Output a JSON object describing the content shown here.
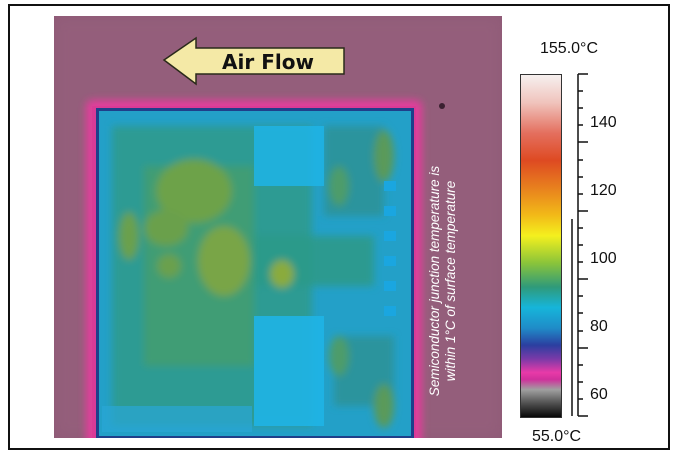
{
  "image": {
    "air_flow_label": "Air Flow",
    "caption_line1": "Semiconductor junction temperature is",
    "caption_line2": "within 1°C of surface temperature"
  },
  "scale": {
    "max_label": "155.0°C",
    "min_label": "55.0°C",
    "ticks": [
      "140",
      "120",
      "100",
      "80",
      "60"
    ]
  }
}
